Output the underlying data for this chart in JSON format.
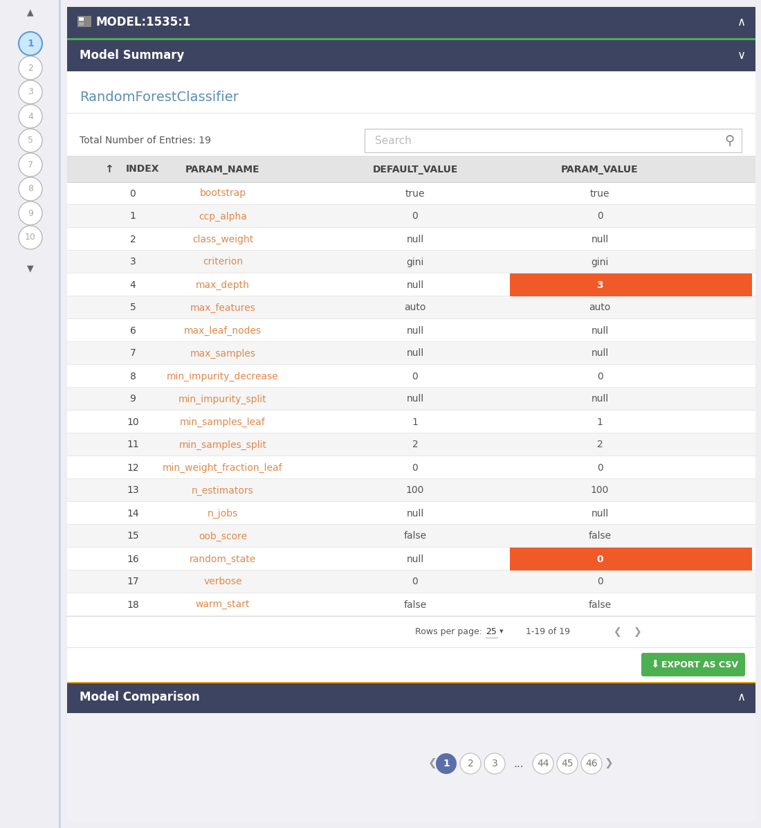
{
  "title_bar": "MODEL:1535:1",
  "model_summary_header": "Model Summary",
  "model_name": "RandomForestClassifier",
  "total_entries": "Total Number of Entries: 19",
  "search_placeholder": "Search",
  "columns": [
    "INDEX",
    "PARAM_NAME",
    "DEFAULT_VALUE",
    "PARAM_VALUE"
  ],
  "rows": [
    [
      0,
      "bootstrap",
      "true",
      "true",
      false
    ],
    [
      1,
      "ccp_alpha",
      "0",
      "0",
      false
    ],
    [
      2,
      "class_weight",
      "null",
      "null",
      false
    ],
    [
      3,
      "criterion",
      "gini",
      "gini",
      false
    ],
    [
      4,
      "max_depth",
      "null",
      "3",
      true
    ],
    [
      5,
      "max_features",
      "auto",
      "auto",
      false
    ],
    [
      6,
      "max_leaf_nodes",
      "null",
      "null",
      false
    ],
    [
      7,
      "max_samples",
      "null",
      "null",
      false
    ],
    [
      8,
      "min_impurity_decrease",
      "0",
      "0",
      false
    ],
    [
      9,
      "min_impurity_split",
      "null",
      "null",
      false
    ],
    [
      10,
      "min_samples_leaf",
      "1",
      "1",
      false
    ],
    [
      11,
      "min_samples_split",
      "2",
      "2",
      false
    ],
    [
      12,
      "min_weight_fraction_leaf",
      "0",
      "0",
      false
    ],
    [
      13,
      "n_estimators",
      "100",
      "100",
      false
    ],
    [
      14,
      "n_jobs",
      "null",
      "null",
      false
    ],
    [
      15,
      "oob_score",
      "false",
      "false",
      false
    ],
    [
      16,
      "random_state",
      "null",
      "0",
      true
    ],
    [
      17,
      "verbose",
      "0",
      "0",
      false
    ],
    [
      18,
      "warm_start",
      "false",
      "false",
      false
    ]
  ],
  "side_numbers": [
    "1",
    "2",
    "3",
    "4",
    "5",
    "7",
    "8",
    "9",
    "10"
  ],
  "model_comparison_header": "Model Comparison",
  "pagination": [
    "1",
    "2",
    "3",
    "...",
    "44",
    "45",
    "46"
  ],
  "rows_per_page": "25",
  "page_info": "1-19 of 19",
  "colors": {
    "bg_outer": "#eeeef3",
    "bg_main": "#ffffff",
    "header_dark": "#3d4461",
    "header_green_line": "#4caf50",
    "table_header_bg": "#e4e4e4",
    "row_odd": "#f5f5f5",
    "row_even": "#ffffff",
    "highlight_orange": "#f05a28",
    "text_dark": "#333333",
    "text_muted": "#888888",
    "text_orange": "#e0884a",
    "text_white": "#ffffff",
    "text_blue": "#5b9bd5",
    "side_active_bg": "#cce8fb",
    "side_active_border": "#5b9bd5",
    "side_inactive": "#cccccc",
    "green_button": "#4caf50",
    "pagination_active_bg": "#5b6ea8",
    "border_color": "#cccccc",
    "separator": "#e0e0e0"
  }
}
